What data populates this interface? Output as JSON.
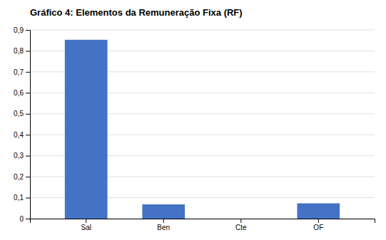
{
  "chart_data": {
    "type": "bar",
    "title": "Gráfico 4: Elementos da Remuneração Fixa (RF)",
    "categories": [
      "Sal",
      "Ben",
      "Cte",
      "OF"
    ],
    "values": [
      0.853,
      0.068,
      0.0,
      0.073
    ],
    "color": "#4472C4",
    "ylim": [
      0,
      0.9
    ],
    "yticks": [
      0,
      {
        "value": 0.1,
        "label": "0,1"
      },
      {
        "value": 0.2,
        "label": "0,2"
      },
      {
        "value": 0.3,
        "label": "0,3"
      },
      {
        "value": 0.4,
        "label": "0,4"
      },
      {
        "value": 0.5,
        "label": "0,5"
      },
      {
        "value": 0.6,
        "label": "0,6"
      },
      {
        "value": 0.7,
        "label": "0,7"
      },
      {
        "value": 0.8,
        "label": "0,8"
      },
      {
        "value": 0.9,
        "label": "0,9"
      }
    ],
    "grid": true
  }
}
